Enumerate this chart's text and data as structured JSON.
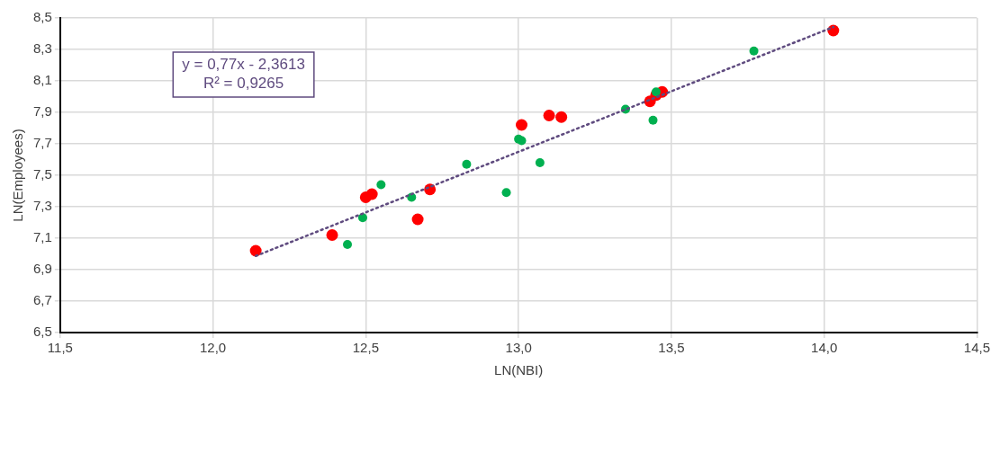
{
  "chart_data": {
    "type": "scatter",
    "xlabel": "LN(NBI)",
    "ylabel": "LN(Employees)",
    "xlim": [
      11.5,
      14.5
    ],
    "xticks": [
      {
        "value": 11.5,
        "label": "11,5"
      },
      {
        "value": 12,
        "label": "12,0"
      },
      {
        "value": 12.5,
        "label": "12,5"
      },
      {
        "value": 13,
        "label": "13,0"
      },
      {
        "value": 13.5,
        "label": "13,5"
      },
      {
        "value": 14,
        "label": "14,0"
      },
      {
        "value": 14.5,
        "label": "14,5"
      }
    ],
    "ylim": [
      6.5,
      8.5
    ],
    "yticks": [
      {
        "value": 6.5,
        "label": "6,5"
      },
      {
        "value": 6.7,
        "label": "6,7"
      },
      {
        "value": 6.9,
        "label": "6,9"
      },
      {
        "value": 7.1,
        "label": "7,1"
      },
      {
        "value": 7.3,
        "label": "7,3"
      },
      {
        "value": 7.5,
        "label": "7,5"
      },
      {
        "value": 7.7,
        "label": "7,7"
      },
      {
        "value": 7.9,
        "label": "7,9"
      },
      {
        "value": 8.1,
        "label": "8,1"
      },
      {
        "value": 8.3,
        "label": "8,3"
      },
      {
        "value": 8.5,
        "label": "8,5"
      }
    ],
    "grid": true,
    "legend": false,
    "marker": "circle",
    "annotations": [
      "y = 0,77x - 2,3613",
      "R² = 0,9265"
    ],
    "series": [
      {
        "color": "#ff0000",
        "x": [
          12.14,
          12.39,
          12.5,
          12.52,
          12.67,
          12.71,
          13.01,
          13.1,
          13.14,
          13.43,
          13.45,
          13.47,
          14.03
        ],
        "values": [
          7.02,
          7.12,
          7.36,
          7.38,
          7.22,
          7.41,
          7.82,
          7.88,
          7.87,
          7.97,
          8.01,
          8.03,
          8.42
        ]
      },
      {
        "color": "#00b050",
        "x": [
          12.44,
          12.49,
          12.55,
          12.65,
          12.83,
          12.96,
          13.0,
          13.01,
          13.07,
          13.35,
          13.45,
          13.44,
          13.77
        ],
        "values": [
          7.06,
          7.23,
          7.44,
          7.36,
          7.57,
          7.39,
          7.73,
          7.72,
          7.58,
          7.92,
          8.03,
          7.85,
          8.29
        ]
      },
      {
        "type": "line",
        "color": "#5f4b7f",
        "line_style": "dotted",
        "marker": "none",
        "x": [
          12.14,
          14.03
        ],
        "values": [
          6.987,
          8.442
        ]
      }
    ]
  }
}
